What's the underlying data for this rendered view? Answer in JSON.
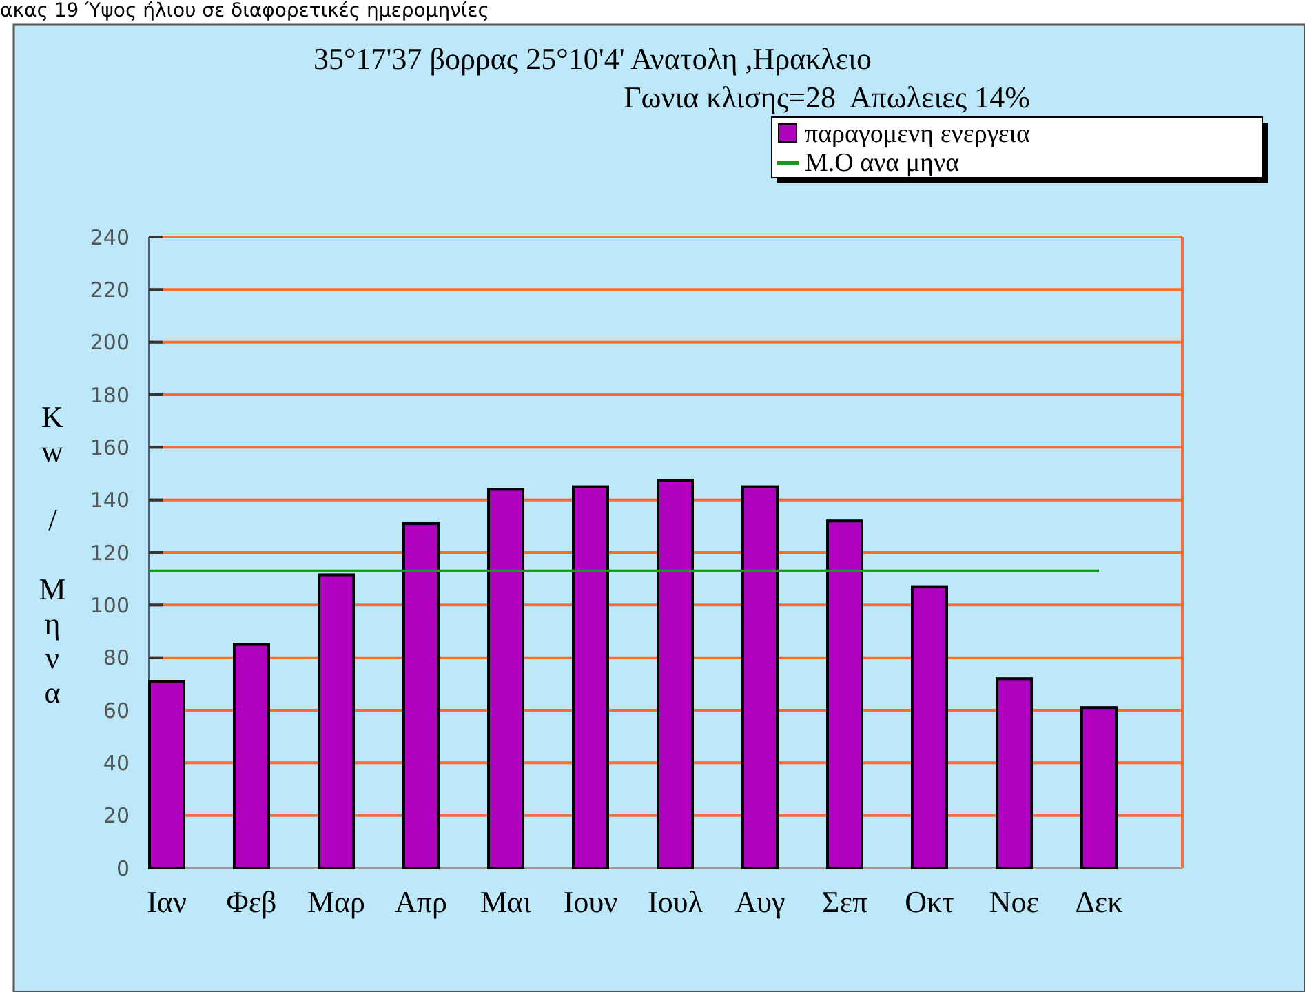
{
  "chart_data": {
    "type": "bar",
    "title": "35°17'37 βορρας 25°10'4' Ανατολη ,Ηρακλειο",
    "subtitle": "Γωνια κλισης=28  Απωλειες 14%",
    "annotations": [
      "ακας 19 Ύψος ήλιου σε διαφορετικές ημερομηνίες"
    ],
    "ylabel": "Kw / Μηνα",
    "categories": [
      "Ιαν",
      "Φεβ",
      "Μαρ",
      "Απρ",
      "Μαι",
      "Ιουν",
      "Ιουλ",
      "Αυγ",
      "Σεπ",
      "Οκτ",
      "Νοε",
      "Δεκ"
    ],
    "series": [
      {
        "name": "παραγομενη ενεργεια",
        "color": "#b000c0",
        "values": [
          71,
          85,
          111.5,
          131,
          144,
          145,
          147.5,
          145,
          132,
          107,
          72,
          61
        ]
      }
    ],
    "ref_lines": [
      {
        "axis": "y",
        "value": 113,
        "label": "Μ.Ο ανα μηνα",
        "color": "#1a9a1a"
      }
    ],
    "ylim": [
      0,
      240
    ],
    "yticks": [
      0,
      20,
      40,
      60,
      80,
      100,
      120,
      140,
      160,
      180,
      200,
      220,
      240
    ],
    "grid": "y",
    "legend": "top right"
  }
}
